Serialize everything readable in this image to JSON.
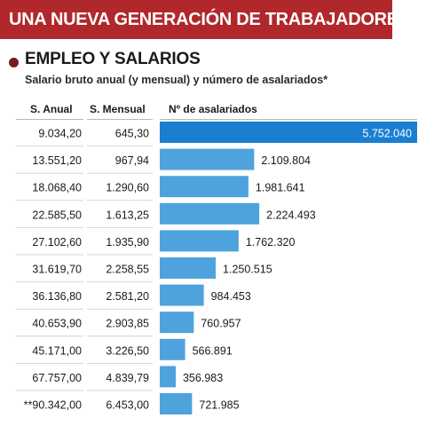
{
  "header": {
    "banner": "UNA NUEVA GENERACIÓN DE TRABAJADORES",
    "section_title": "EMPLEO Y SALARIOS",
    "subtitle": "Salario bruto anual (y mensual) y número de asalariados*"
  },
  "columns": {
    "annual": "S. Anual",
    "monthly": "S. Mensual",
    "count": "Nº de asalariados"
  },
  "colors": {
    "banner": "#b0282c",
    "bar": "#4ea3dc",
    "bar_top": "#1a7fd0"
  },
  "chart_data": {
    "type": "bar",
    "orientation": "horizontal",
    "title": "EMPLEO Y SALARIOS",
    "subtitle": "Salario bruto anual (y mensual) y número de asalariados*",
    "categories": [
      "9.034,20",
      "13.551,20",
      "18.068,40",
      "22.585,50",
      "27.102,60",
      "31.619,70",
      "36.136,80",
      "40.653,90",
      "45.171,00",
      "67.757,00",
      "**90.342,00"
    ],
    "monthly": [
      "645,30",
      "967,94",
      "1.290,60",
      "1.613,25",
      "1.935,90",
      "2.258,55",
      "2.581,20",
      "2.903,85",
      "3.226,50",
      "4.839,79",
      "6.453,00"
    ],
    "values": [
      5752040,
      2109804,
      1981641,
      2224493,
      1762320,
      1250515,
      984453,
      760957,
      566891,
      356983,
      721985
    ],
    "value_labels": [
      "5.752.040",
      "2.109.804",
      "1.981.641",
      "2.224.493",
      "1.762.320",
      "1.250.515",
      "984.453",
      "760.957",
      "566.891",
      "356.983",
      "721.985"
    ],
    "xlim": [
      0,
      5752040
    ],
    "grid": false
  }
}
